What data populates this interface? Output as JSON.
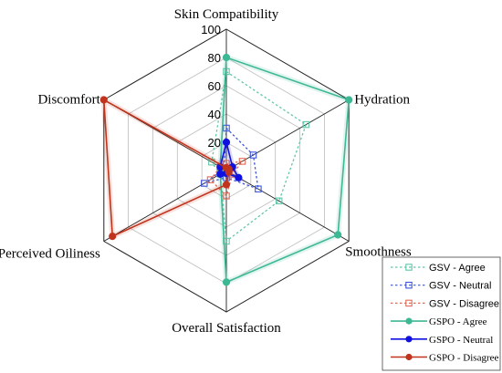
{
  "chart_data": {
    "type": "radar",
    "axes": [
      "Skin Compatibility",
      "Hydration",
      "Smoothness",
      "Overall Satisfaction",
      "Perceived Oiliness",
      "Discomfort"
    ],
    "rlim": [
      0,
      100
    ],
    "ticks": [
      20,
      40,
      60,
      80,
      100
    ],
    "tick_labels": [
      "20",
      "40",
      "60",
      "80",
      "100"
    ],
    "grid": true,
    "legend_position": "bottom-right",
    "series": [
      {
        "name": "GSV - Agree",
        "color": "#5fc7a8",
        "style": "dotted",
        "marker": "square-open",
        "values": [
          70,
          65,
          43,
          50,
          5,
          12
        ]
      },
      {
        "name": "GSV - Neutral",
        "color": "#3a55d8",
        "style": "dotted",
        "marker": "square-open",
        "values": [
          30,
          22,
          26,
          5,
          18,
          2
        ]
      },
      {
        "name": "GSV - Disagree",
        "color": "#e06a55",
        "style": "dotted",
        "marker": "square-open",
        "values": [
          5,
          13,
          5,
          18,
          13,
          5
        ]
      },
      {
        "name": "GSPO - Agree",
        "color": "#3db894",
        "style": "solid",
        "marker": "circle",
        "values": [
          80,
          100,
          91,
          79,
          5,
          5
        ]
      },
      {
        "name": "GSPO - Neutral",
        "color": "#1010e0",
        "style": "solid",
        "marker": "circle",
        "values": [
          20,
          5,
          10,
          2,
          5,
          5
        ]
      },
      {
        "name": "GSPO - Disagree",
        "color": "#c0341e",
        "style": "solid",
        "marker": "circle",
        "values": [
          2,
          2,
          2,
          10,
          93,
          100
        ]
      }
    ]
  }
}
